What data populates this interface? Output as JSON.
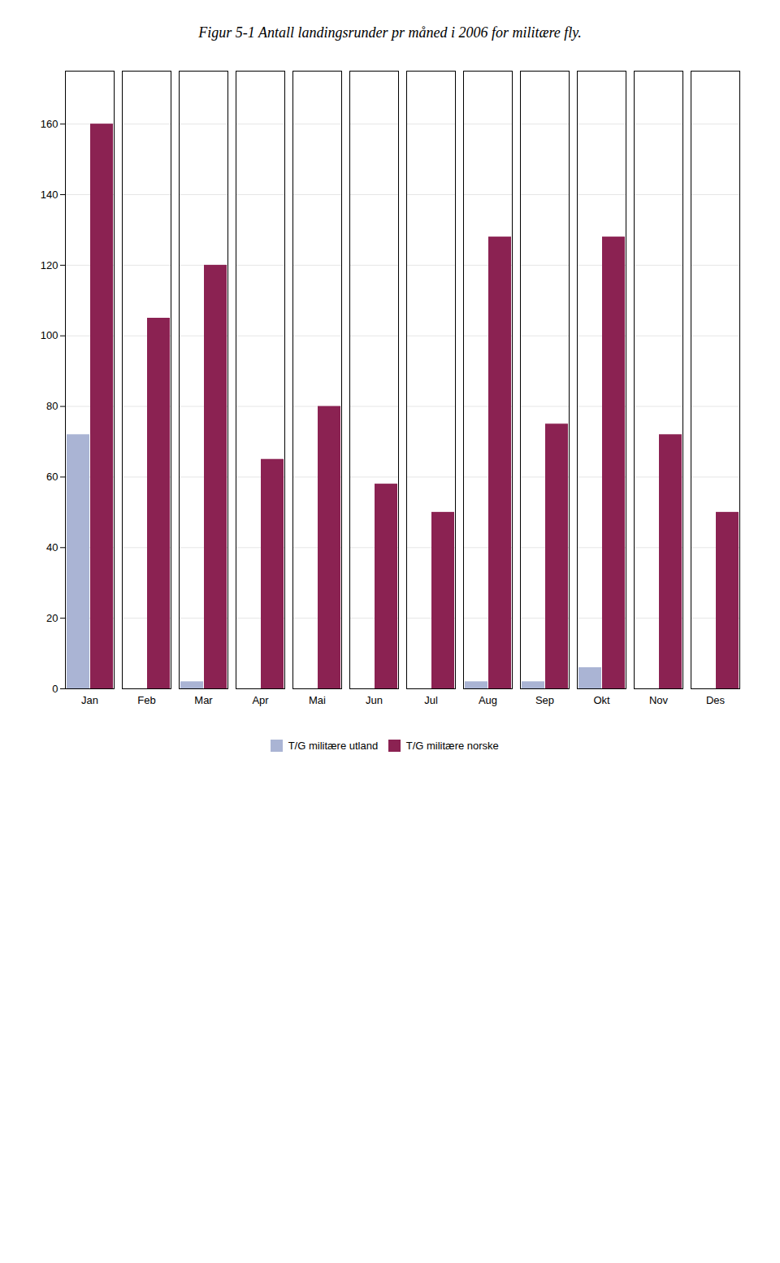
{
  "chart_data": {
    "type": "bar",
    "title": "Figur 5-1 Antall landingsrunder pr måned i 2006 for militære fly.",
    "categories": [
      "Jan",
      "Feb",
      "Mar",
      "Apr",
      "Mai",
      "Jun",
      "Jul",
      "Aug",
      "Sep",
      "Okt",
      "Nov",
      "Des"
    ],
    "series": [
      {
        "name": "T/G militære utland",
        "color": "#aab4d4",
        "values": [
          72,
          0,
          2,
          0,
          0,
          0,
          0,
          2,
          2,
          6,
          0,
          0
        ]
      },
      {
        "name": "T/G militære norske",
        "color": "#8b2252",
        "values": [
          160,
          105,
          120,
          65,
          80,
          58,
          50,
          128,
          75,
          128,
          72,
          50
        ]
      }
    ],
    "ylim": [
      0,
      175
    ],
    "yticks": [
      0,
      20,
      40,
      60,
      80,
      100,
      120,
      140,
      160
    ],
    "grid": true,
    "legend": "bottom"
  }
}
